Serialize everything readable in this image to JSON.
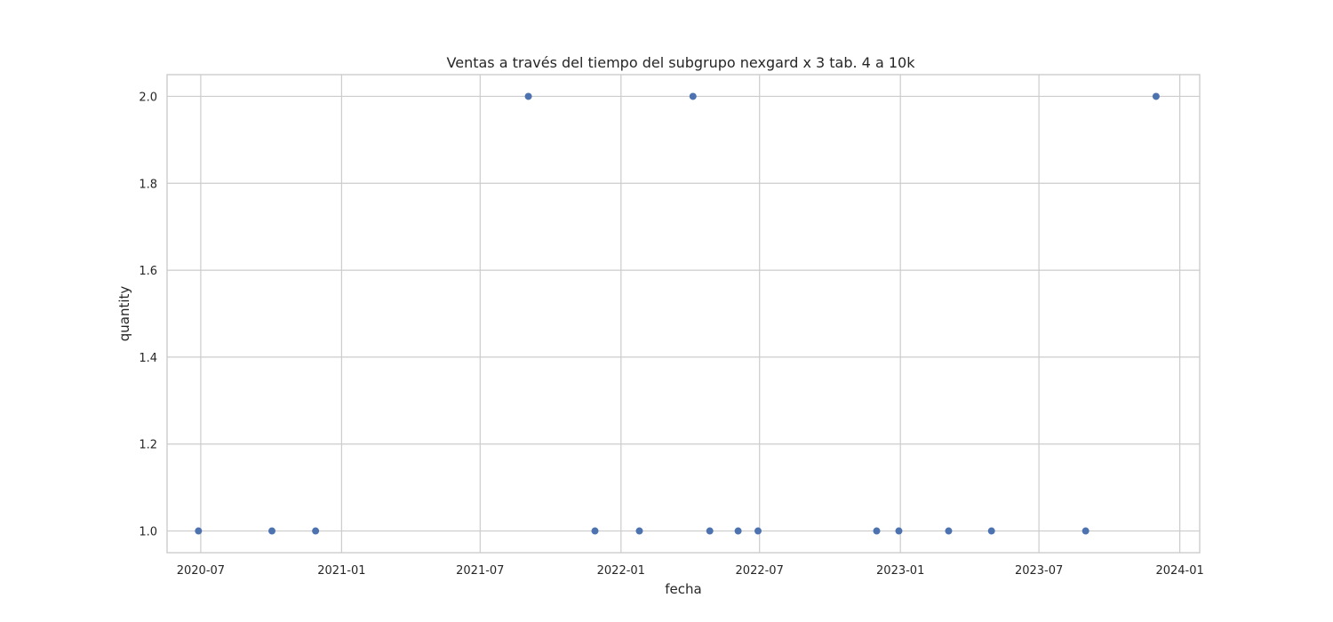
{
  "chart_data": {
    "type": "scatter",
    "title": "Ventas a través del tiempo del subgrupo nexgard x 3 tab. 4 a 10k",
    "xlabel": "fecha",
    "ylabel": "quantity",
    "xlim": [
      "2020-05-18",
      "2024-01-27"
    ],
    "ylim": [
      0.95,
      2.05
    ],
    "x_ticks": [
      "2020-07",
      "2021-01",
      "2021-07",
      "2022-01",
      "2022-07",
      "2023-01",
      "2023-07",
      "2024-01"
    ],
    "y_ticks": [
      "1.0",
      "1.2",
      "1.4",
      "1.6",
      "1.8",
      "2.0"
    ],
    "grid": true,
    "color": "#4c72b0",
    "points": [
      {
        "x": "2020-06-28",
        "y": 1
      },
      {
        "x": "2020-10-02",
        "y": 1
      },
      {
        "x": "2020-11-28",
        "y": 1
      },
      {
        "x": "2021-09-02",
        "y": 2
      },
      {
        "x": "2021-11-28",
        "y": 1
      },
      {
        "x": "2022-01-25",
        "y": 1
      },
      {
        "x": "2022-04-05",
        "y": 2
      },
      {
        "x": "2022-04-27",
        "y": 1
      },
      {
        "x": "2022-06-03",
        "y": 1
      },
      {
        "x": "2022-06-29",
        "y": 1
      },
      {
        "x": "2022-12-01",
        "y": 1
      },
      {
        "x": "2022-12-30",
        "y": 1
      },
      {
        "x": "2023-03-05",
        "y": 1
      },
      {
        "x": "2023-04-30",
        "y": 1
      },
      {
        "x": "2023-08-31",
        "y": 1
      },
      {
        "x": "2023-12-01",
        "y": 2
      }
    ]
  }
}
